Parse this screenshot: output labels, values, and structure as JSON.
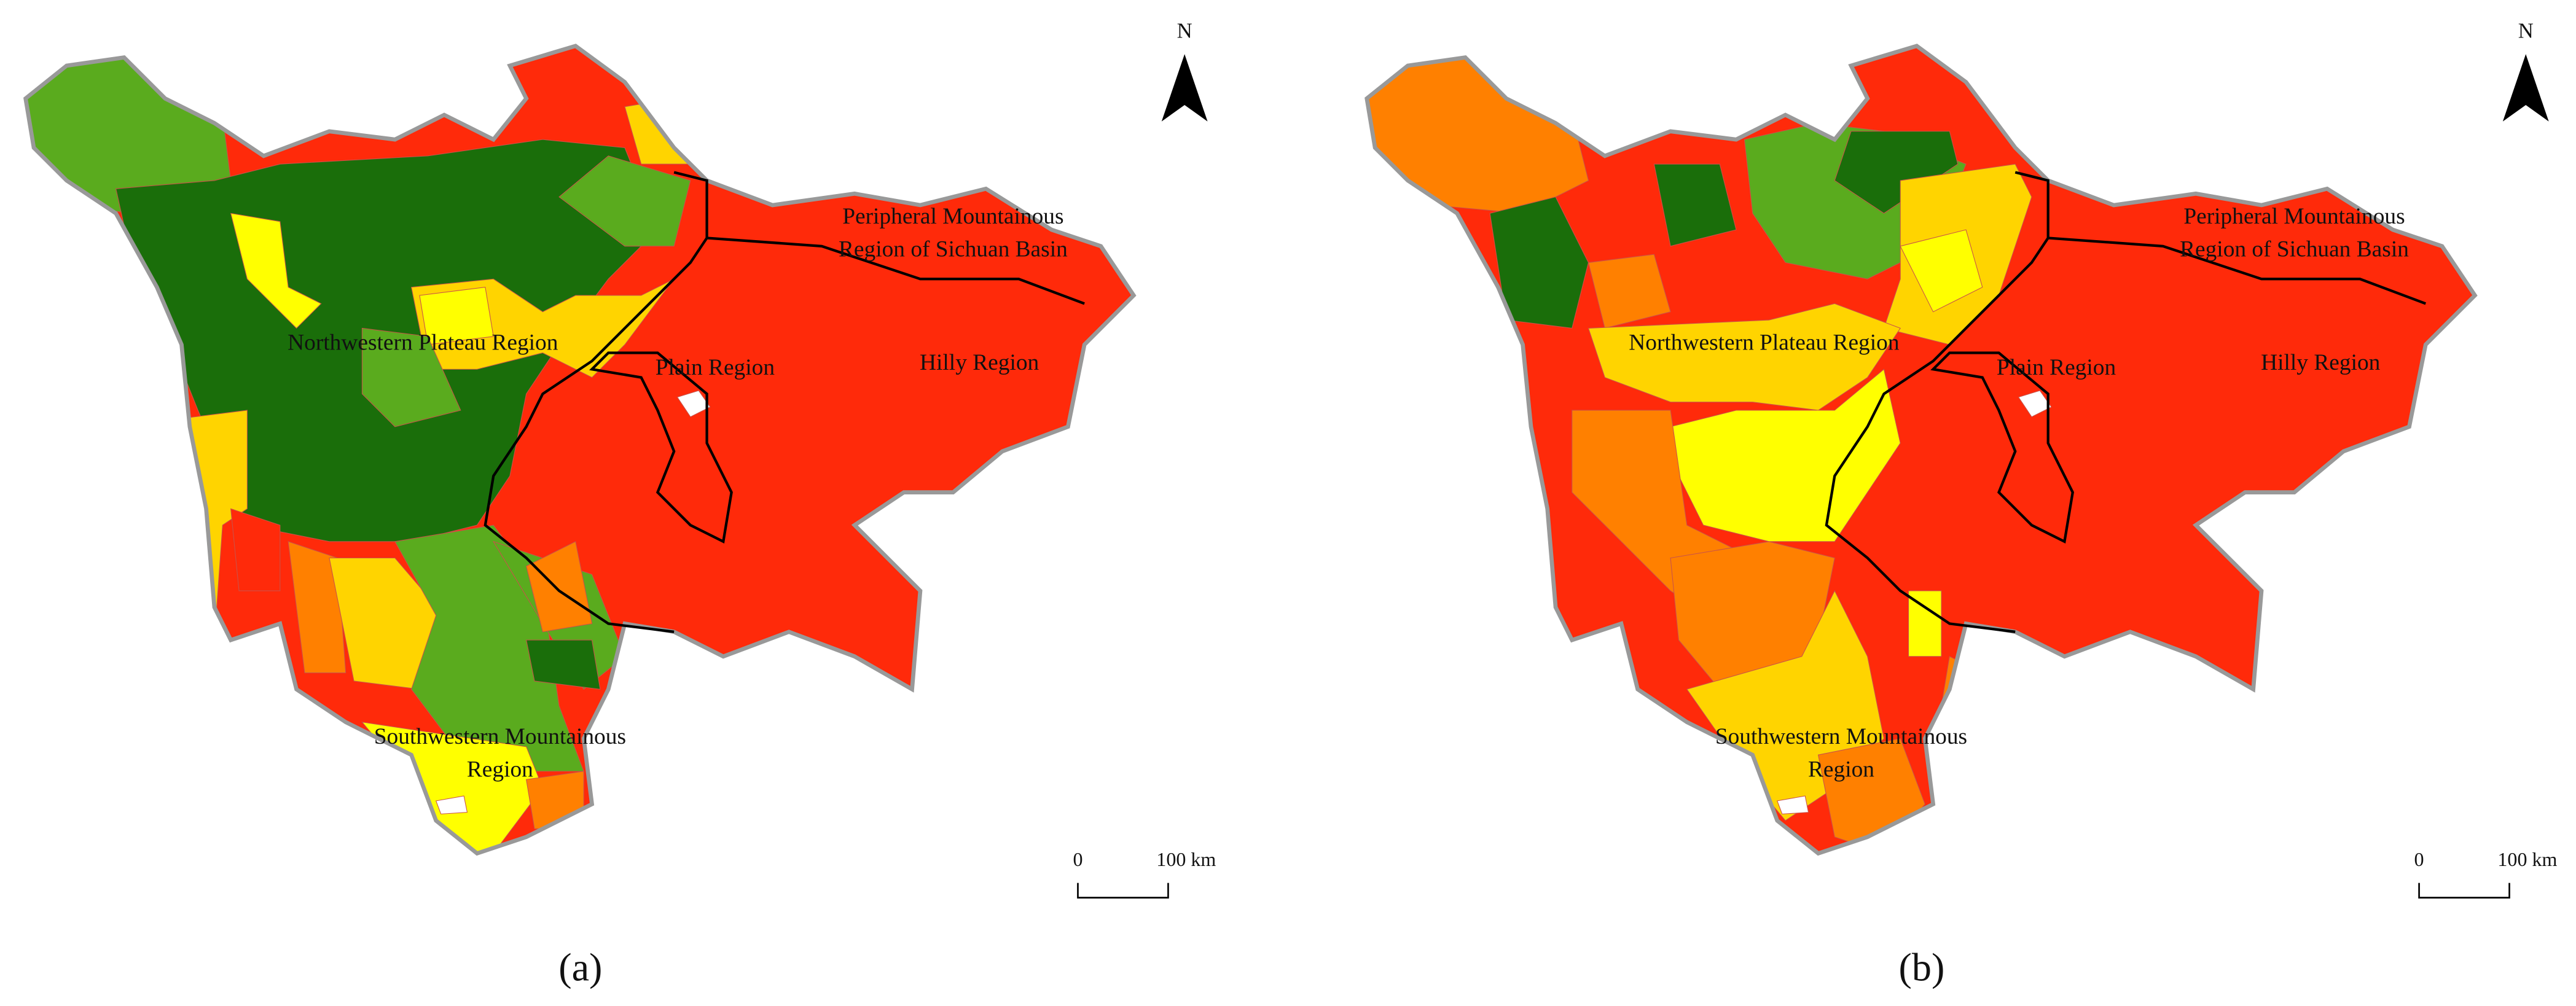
{
  "panels": [
    {
      "caption": "(a)",
      "north": "N",
      "scale": [
        "0",
        "100 km"
      ],
      "regions": [
        {
          "lines": [
            "Peripheral Mountainous",
            "Region of Sichuan Basin"
          ]
        },
        {
          "lines": [
            "Northwestern Plateau Region"
          ]
        },
        {
          "lines": [
            "Plain Region"
          ]
        },
        {
          "lines": [
            "Hilly Region"
          ]
        },
        {
          "lines": [
            "Southwestern Mountainous",
            "Region"
          ]
        }
      ]
    },
    {
      "caption": "(b)",
      "north": "N",
      "scale": [
        "0",
        "100 km"
      ],
      "regions": [
        {
          "lines": [
            "Peripheral Mountainous",
            "Region of Sichuan Basin"
          ]
        },
        {
          "lines": [
            "Northwestern Plateau Region"
          ]
        },
        {
          "lines": [
            "Plain Region"
          ]
        },
        {
          "lines": [
            "Hilly Region"
          ]
        },
        {
          "lines": [
            "Southwestern Mountainous",
            "Region"
          ]
        }
      ]
    }
  ]
}
